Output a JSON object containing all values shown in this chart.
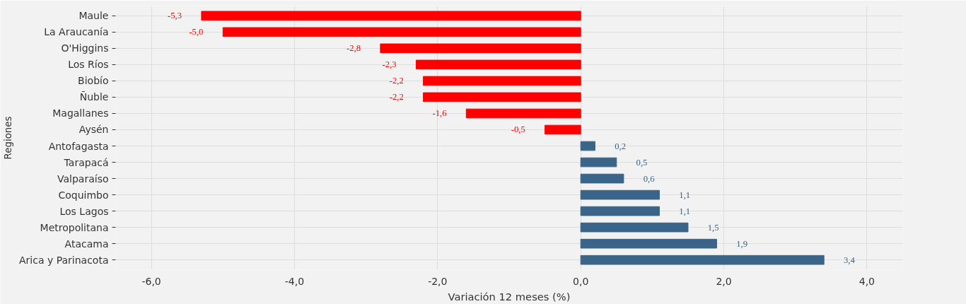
{
  "chart_data": {
    "type": "bar",
    "orientation": "horizontal",
    "categories": [
      "Maule",
      "La Araucanía",
      "O'Higgins",
      "Los Ríos",
      "Biobío",
      "Ñuble",
      "Magallanes",
      "Aysén",
      "Antofagasta",
      "Tarapacá",
      "Valparaíso",
      "Coquimbo",
      "Los Lagos",
      "Metropolitana",
      "Atacama",
      "Arica y Parinacota"
    ],
    "values": [
      -5.3,
      -5.0,
      -2.8,
      -2.3,
      -2.2,
      -2.2,
      -1.6,
      -0.5,
      0.2,
      0.5,
      0.6,
      1.1,
      1.1,
      1.5,
      1.9,
      3.4
    ],
    "colors": [
      "#ff0000",
      "#ff0000",
      "#ff0000",
      "#ff0000",
      "#ff0000",
      "#ff0000",
      "#ff0000",
      "#ff0000",
      "#3a6589",
      "#3a6589",
      "#3a6589",
      "#3a6589",
      "#3a6589",
      "#3a6589",
      "#3a6589",
      "#3a6589"
    ],
    "value_labels": [
      "-5,3",
      "-5,0",
      "-2,8",
      "-2,3",
      "-2,2",
      "-2,2",
      "-1,6",
      "-0,5",
      "0,2",
      "0,5",
      "0,6",
      "1,1",
      "1,1",
      "1,5",
      "1,9",
      "3,4"
    ],
    "xlim": [
      -6.5,
      4.5
    ],
    "xticks": [
      {
        "value": -6,
        "label": "-6,0"
      },
      {
        "value": -4,
        "label": "-4,0"
      },
      {
        "value": -2,
        "label": "-2,0"
      },
      {
        "value": 0,
        "label": "0,0"
      },
      {
        "value": 2,
        "label": "2,0"
      },
      {
        "value": 4,
        "label": "4,0"
      }
    ],
    "xlabel": "Variación 12 meses (%)",
    "ylabel": "Regiones",
    "grid": true
  }
}
